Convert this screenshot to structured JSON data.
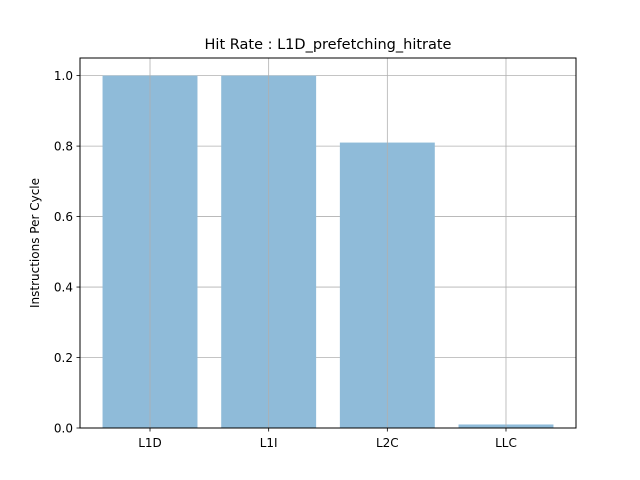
{
  "chart_data": {
    "type": "bar",
    "title": "Hit Rate : L1D_prefetching_hitrate",
    "xlabel": "",
    "ylabel": "Instructions Per Cycle",
    "categories": [
      "L1D",
      "L1I",
      "L2C",
      "LLC"
    ],
    "values": [
      1.0,
      1.0,
      0.81,
      0.01
    ],
    "ylim": [
      0,
      1.05
    ],
    "yticks": [
      0.0,
      0.2,
      0.4,
      0.6,
      0.8,
      1.0
    ],
    "ytick_labels": [
      "0.0",
      "0.2",
      "0.4",
      "0.6",
      "0.8",
      "1.0"
    ],
    "grid": true,
    "bar_color": "#8fbbd9",
    "grid_color": "#b0b0b0"
  }
}
